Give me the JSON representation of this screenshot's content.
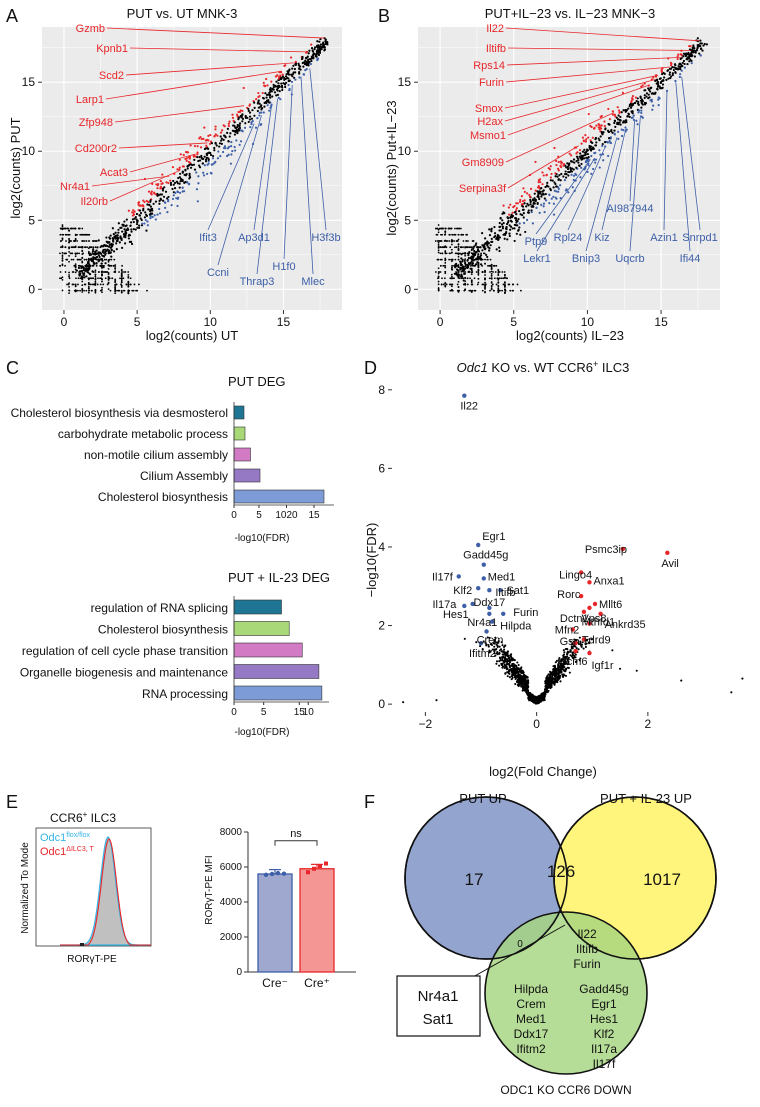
{
  "panels": {
    "A": {
      "letter": "A",
      "title": "PUT vs. UT MNK-3",
      "xlabel": "log2(counts) UT",
      "ylabel": "log2(counts) PUT",
      "xticks": [
        "0",
        "5",
        "10",
        "15"
      ],
      "yticks": [
        "0",
        "5",
        "10",
        "15"
      ],
      "red_genes": [
        "Gzmb",
        "Kpnb1",
        "Scd2",
        "Larp1",
        "Zfp948",
        "Cd200r2",
        "Acat3",
        "Nr4a1",
        "Il20rb"
      ],
      "blue_genes": [
        "Ifit3",
        "Ccni",
        "Ap3d1",
        "Thrap3",
        "H1f0",
        "Mlec",
        "H3f3b"
      ]
    },
    "B": {
      "letter": "B",
      "title": "PUT+IL−23 vs. IL−23 MNK−3",
      "xlabel": "log2(counts) IL−23",
      "ylabel": "log2(counts) Put+IL−23",
      "xticks": [
        "0",
        "5",
        "10",
        "15"
      ],
      "yticks": [
        "0",
        "5",
        "10",
        "15"
      ],
      "red_genes": [
        "Il22",
        "Iltifb",
        "Rps14",
        "Furin",
        "Smox",
        "H2ax",
        "Msmo1",
        "Gm8909",
        "Serpina3f"
      ],
      "blue_genes": [
        "Lekr1",
        "Rpl24",
        "Bnip3",
        "Kiz",
        "AI987944",
        "Uqcrb",
        "Azin1",
        "Ifi44",
        "Snrpd1",
        "Ptp9"
      ]
    },
    "C": {
      "letter": "C",
      "put_title": "PUT DEG",
      "put_terms": [
        "Cholesterol biosynthesis via desmosterol",
        "carbohydrate metabolic process",
        "non-motile cilium assembly",
        "Cilium Assembly",
        "Cholesterol biosynthesis"
      ],
      "put_xticks": [
        "0",
        "5",
        "1020",
        "15"
      ],
      "il23_title": "PUT + IL-23 DEG",
      "il23_terms": [
        "regulation of RNA splicing",
        "Cholesterol biosynthesis",
        "regulation of cell cycle phase transition",
        "Organelle biogenesis and maintenance",
        "RNA processing"
      ],
      "il23_xticks": [
        "0",
        "5",
        "15",
        "10"
      ],
      "xlabel": "-log10(FDR)"
    },
    "D": {
      "letter": "D",
      "title_italic": "Odc1",
      "title_rest": " KO vs. WT CCR6",
      "title_sup": "+",
      "title_end": " ILC3",
      "xlabel": "log2(Fold Change)",
      "ylabel": "−log10(FDR)",
      "xticks": [
        "−2",
        "0",
        "2"
      ],
      "yticks": [
        "0",
        "2",
        "4",
        "6",
        "8"
      ],
      "blue_labels": [
        "Il22",
        "Egr1",
        "Gadd45g",
        "Il17f",
        "Med1",
        "Klf2",
        "Iltifb",
        "Sat1",
        "Il17a",
        "Hes1",
        "Ddx17",
        "Nr4a1",
        "Furin",
        "Hilpda",
        "Crem",
        "Ifitm2"
      ],
      "red_labels": [
        "Psmc3ip",
        "Avil",
        "Lingo4",
        "Anxa1",
        "Rorc",
        "Mllt6",
        "Dctn1",
        "Vps8",
        "Ankrd35",
        "Mthfd1",
        "Mfn2",
        "Gsn",
        "Tdrd9",
        "Mcm6",
        "Igf1r"
      ]
    },
    "E": {
      "letter": "E",
      "hist_title": "CCR6",
      "hist_title_sup": "+",
      "hist_title_end": " ILC3",
      "legend_ctrl": "Odc1",
      "legend_ctrl_sup": "flox/flox",
      "legend_ko": "Odc1",
      "legend_ko_sup": "ΔILC3, T",
      "hist_ylabel": "Normalized To Mode",
      "hist_xlabel": "RORγT-PE",
      "bar_ylabel": "RORγT-PE MFI",
      "bar_yticks": [
        "0",
        "2000",
        "4000",
        "6000",
        "8000"
      ],
      "ns_label": "ns",
      "categories": [
        "Cre⁻",
        "Cre⁺"
      ]
    },
    "F": {
      "letter": "F",
      "put_up": "PUT UP",
      "il23_up": "PUT + IL-23 UP",
      "ko_down": "ODC1 KO CCR6 DOWN",
      "only_put": "17",
      "put_il23": "126",
      "only_il23": "1017",
      "zero": "0",
      "triple": [
        "Il22",
        "Iltifb",
        "Furin"
      ],
      "callout": [
        "Nr4a1",
        "Sat1"
      ],
      "ko_col1": [
        "Hilpda",
        "Crem",
        "Med1",
        "Ddx17",
        "Ifitm2"
      ],
      "ko_col2": [
        "Gadd45g",
        "Egr1",
        "Hes1",
        "Klf2",
        "Il17a",
        "Il17f"
      ]
    }
  },
  "chart_data": [
    {
      "type": "scatter",
      "title": "PUT vs. UT MNK-3",
      "xlabel": "log2(counts) UT",
      "ylabel": "log2(counts) PUT",
      "xlim": [
        -1.5,
        19
      ],
      "ylim": [
        -1.5,
        19
      ],
      "series": [
        {
          "name": "up",
          "color": "#e8262a",
          "range_x": [
            5,
            17
          ]
        },
        {
          "name": "down",
          "color": "#3d5fa8",
          "range_x": [
            5,
            17
          ]
        },
        {
          "name": "ns",
          "color": "#000000",
          "range_x": [
            -0.5,
            18
          ]
        }
      ]
    },
    {
      "type": "scatter",
      "title": "PUT+IL−23 vs. IL−23 MNK−3",
      "xlabel": "log2(counts) IL−23",
      "ylabel": "log2(counts) Put+IL−23",
      "xlim": [
        -1.5,
        19
      ],
      "ylim": [
        -1.5,
        19
      ],
      "series": [
        {
          "name": "up",
          "color": "#e8262a"
        },
        {
          "name": "down",
          "color": "#3d5fa8"
        },
        {
          "name": "ns",
          "color": "#000000"
        }
      ]
    },
    {
      "type": "bar",
      "orientation": "horizontal",
      "title": "PUT DEG",
      "xlabel": "-log10(FDR)",
      "categories": [
        "Cholesterol biosynthesis via desmosterol",
        "carbohydrate metabolic process",
        "non-motile cilium assembly",
        "Cilium Assembly",
        "Cholesterol biosynthesis"
      ],
      "values": [
        2.0,
        2.2,
        3.3,
        5.2,
        18.0
      ],
      "xlim": [
        0,
        20
      ],
      "colors": [
        "#1f7694",
        "#a8d878",
        "#d27bc4",
        "#9679c4",
        "#7d9bd6"
      ]
    },
    {
      "type": "bar",
      "orientation": "horizontal",
      "title": "PUT + IL-23 DEG",
      "xlabel": "-log10(FDR)",
      "categories": [
        "regulation of RNA splicing",
        "Cholesterol biosynthesis",
        "regulation of cell cycle phase transition",
        "Organelle biogenesis and maintenance",
        "RNA processing"
      ],
      "values": [
        8.0,
        9.3,
        11.5,
        14.3,
        14.8
      ],
      "xlim": [
        0,
        16
      ],
      "colors": [
        "#1f7694",
        "#a8d878",
        "#d27bc4",
        "#9679c4",
        "#7d9bd6"
      ]
    },
    {
      "type": "scatter",
      "title": "Odc1 KO vs. WT CCR6+ ILC3",
      "xlabel": "log2(Fold Change)",
      "ylabel": "−log10(FDR)",
      "xlim": [
        -2.6,
        3.8
      ],
      "ylim": [
        -0.2,
        8.3
      ],
      "labeled_points": [
        {
          "gene": "Il22",
          "x": -1.3,
          "y": 7.85,
          "group": "down"
        },
        {
          "gene": "Egr1",
          "x": -1.05,
          "y": 4.05,
          "group": "down"
        },
        {
          "gene": "Gadd45g",
          "x": -0.95,
          "y": 3.55,
          "group": "down"
        },
        {
          "gene": "Il17f",
          "x": -1.4,
          "y": 3.25,
          "group": "down"
        },
        {
          "gene": "Med1",
          "x": -0.95,
          "y": 3.2,
          "group": "down"
        },
        {
          "gene": "Klf2",
          "x": -1.05,
          "y": 2.95,
          "group": "down"
        },
        {
          "gene": "Iltifb",
          "x": -0.85,
          "y": 2.9,
          "group": "down"
        },
        {
          "gene": "Sat1",
          "x": -0.65,
          "y": 2.9,
          "group": "down"
        },
        {
          "gene": "Il17a",
          "x": -1.3,
          "y": 2.5,
          "group": "down"
        },
        {
          "gene": "Hes1",
          "x": -1.15,
          "y": 2.55,
          "group": "down"
        },
        {
          "gene": "Ddx17",
          "x": -0.85,
          "y": 2.45,
          "group": "down"
        },
        {
          "gene": "Nr4a1",
          "x": -0.85,
          "y": 2.3,
          "group": "down"
        },
        {
          "gene": "Furin",
          "x": -0.6,
          "y": 2.3,
          "group": "down"
        },
        {
          "gene": "Hilpda",
          "x": -0.8,
          "y": 2.1,
          "group": "down"
        },
        {
          "gene": "Crem",
          "x": -0.9,
          "y": 1.85,
          "group": "down"
        },
        {
          "gene": "Ifitm2",
          "x": -1.0,
          "y": 1.55,
          "group": "down"
        },
        {
          "gene": "Psmc3ip",
          "x": 1.55,
          "y": 3.95,
          "group": "up"
        },
        {
          "gene": "Avil",
          "x": 2.35,
          "y": 3.85,
          "group": "up"
        },
        {
          "gene": "Lingo4",
          "x": 0.8,
          "y": 3.35,
          "group": "up"
        },
        {
          "gene": "Anxa1",
          "x": 0.95,
          "y": 3.1,
          "group": "up"
        },
        {
          "gene": "Rorc",
          "x": 0.8,
          "y": 2.75,
          "group": "up"
        },
        {
          "gene": "Mllt6",
          "x": 1.05,
          "y": 2.55,
          "group": "up"
        },
        {
          "gene": "Dctn1",
          "x": 0.85,
          "y": 2.35,
          "group": "up"
        },
        {
          "gene": "Vps8",
          "x": 0.95,
          "y": 2.45,
          "group": "up"
        },
        {
          "gene": "Ankrd35",
          "x": 1.15,
          "y": 2.3,
          "group": "up"
        },
        {
          "gene": "Mthfd1",
          "x": 0.95,
          "y": 2.05,
          "group": "up"
        },
        {
          "gene": "Mfn2",
          "x": 0.65,
          "y": 1.9,
          "group": "up"
        },
        {
          "gene": "Gsn",
          "x": 0.7,
          "y": 1.55,
          "group": "up"
        },
        {
          "gene": "Tdrd9",
          "x": 0.85,
          "y": 1.65,
          "group": "up"
        },
        {
          "gene": "Mcm6",
          "x": 0.7,
          "y": 1.35,
          "group": "up"
        },
        {
          "gene": "Igf1r",
          "x": 0.95,
          "y": 1.3,
          "group": "up"
        }
      ]
    },
    {
      "type": "bar",
      "title": "RORγT-PE MFI",
      "categories": [
        "Cre⁻",
        "Cre⁺"
      ],
      "values": [
        5600,
        5900
      ],
      "points": [
        [
          5550,
          5600,
          5650,
          5620
        ],
        [
          5700,
          5900,
          6050,
          6200
        ]
      ],
      "ylim": [
        0,
        8000
      ],
      "colors": [
        "#9fa9cf",
        "#f39694"
      ],
      "annotation": "ns"
    }
  ]
}
